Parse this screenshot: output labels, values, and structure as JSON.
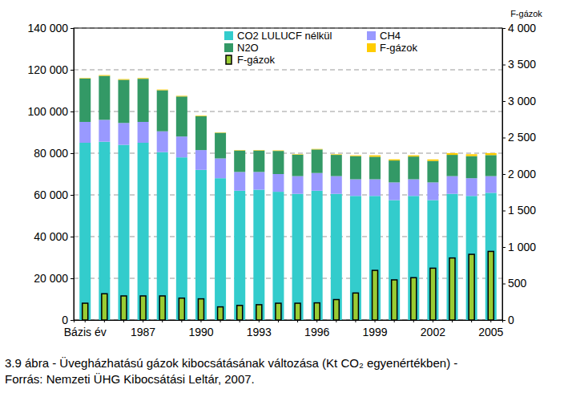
{
  "chart_data": {
    "type": "bar",
    "title": [
      "3.9 ábra - Üvegházhatású gázok kibocsátásának változása (Kt CO₂ egyenértékben) -",
      "Forrás: Nemzeti ÜHG Kibocsátási Leltár, 2007."
    ],
    "y2_label": "F-gázok",
    "stacked": true,
    "grid": true,
    "legend": "top",
    "categories": [
      "Bázis év",
      null,
      null,
      "1987",
      null,
      null,
      "1990",
      null,
      null,
      "1993",
      null,
      null,
      "1996",
      null,
      null,
      "1999",
      null,
      null,
      "2002",
      null,
      null,
      "2005"
    ],
    "series": [
      {
        "name": "CO2 LULUCF nélkül",
        "color": "#33cccc",
        "values": [
          85000,
          85500,
          84000,
          85000,
          80500,
          78000,
          72000,
          68000,
          62000,
          62500,
          61500,
          60500,
          62000,
          60500,
          59500,
          59500,
          57500,
          59500,
          57500,
          60500,
          59500,
          61000
        ]
      },
      {
        "name": "CH4",
        "color": "#9999ff",
        "values": [
          10000,
          10500,
          10500,
          10000,
          10000,
          10000,
          9500,
          9500,
          9000,
          8500,
          8500,
          8500,
          8500,
          8500,
          8000,
          8000,
          8500,
          8000,
          8500,
          8500,
          8500,
          8000
        ]
      },
      {
        "name": "N2O",
        "color": "#339966",
        "values": [
          20800,
          21100,
          20700,
          20700,
          19700,
          19200,
          16200,
          12300,
          10300,
          10300,
          11100,
          10300,
          11300,
          10200,
          11100,
          10800,
          10500,
          10900,
          10300,
          10200,
          10600,
          10100
        ]
      },
      {
        "name": "F-gázok",
        "color": "#ffcc00",
        "values": [
          230,
          360,
          330,
          330,
          330,
          300,
          290,
          180,
          200,
          210,
          230,
          230,
          235,
          280,
          370,
          680,
          550,
          580,
          710,
          850,
          900,
          940
        ]
      },
      {
        "name": "F-gázok",
        "color": "#99cc33",
        "axis": "y2",
        "type": "bar",
        "values": [
          230,
          360,
          330,
          330,
          330,
          300,
          290,
          180,
          200,
          210,
          230,
          230,
          235,
          280,
          370,
          680,
          550,
          580,
          710,
          850,
          900,
          940
        ]
      }
    ],
    "ylim": [
      0,
      140000
    ],
    "yticks": [
      0,
      {
        "value": 20000,
        "label": "20 000"
      },
      {
        "value": 40000,
        "label": "40 000"
      },
      {
        "value": 60000,
        "label": "60 000"
      },
      {
        "value": 80000,
        "label": "80 000"
      },
      {
        "value": 100000,
        "label": "100 000"
      },
      {
        "value": 120000,
        "label": "120 000"
      },
      {
        "value": 140000,
        "label": "140 000"
      }
    ],
    "y2lim": [
      0,
      4000
    ],
    "y2ticks": [
      0,
      500,
      {
        "value": 1000,
        "label": "1 000"
      },
      {
        "value": 1500,
        "label": "1 500"
      },
      {
        "value": 2000,
        "label": "2 000"
      },
      {
        "value": 2500,
        "label": "2 500"
      },
      {
        "value": 3000,
        "label": "3 000"
      },
      {
        "value": 3500,
        "label": "3 500"
      },
      {
        "value": 4000,
        "label": "4 000"
      }
    ]
  }
}
